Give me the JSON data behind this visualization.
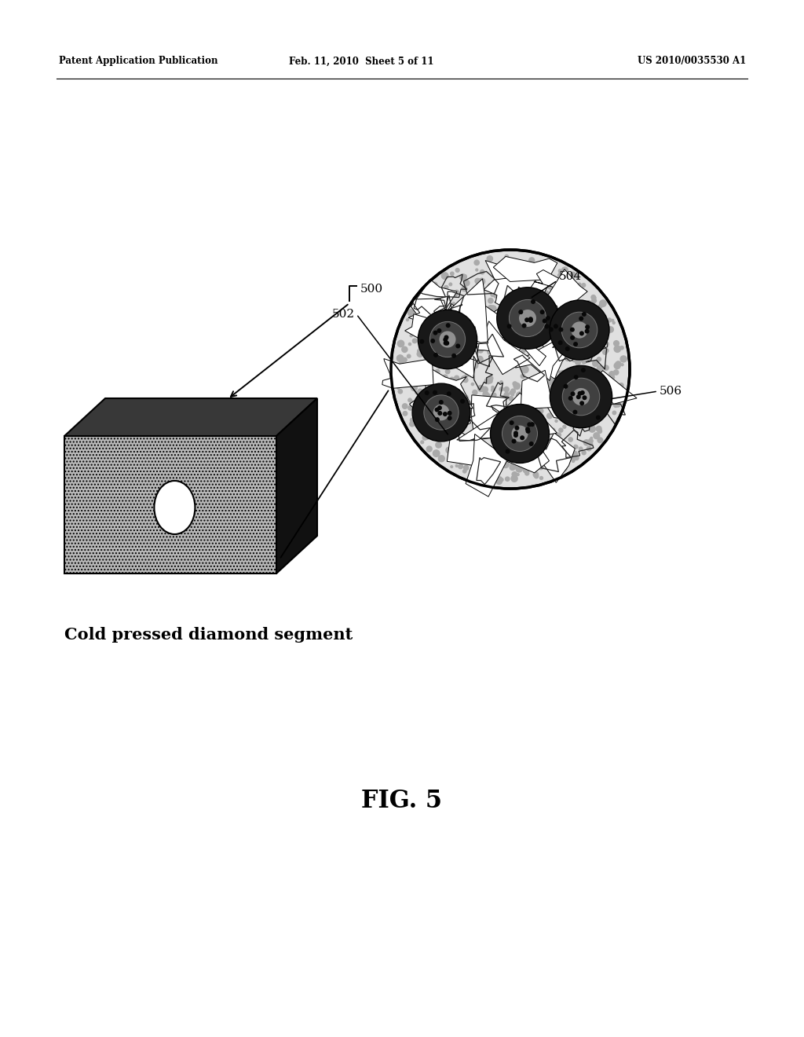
{
  "bg_color": "#ffffff",
  "header_left": "Patent Application Publication",
  "header_mid": "Feb. 11, 2010  Sheet 5 of 11",
  "header_right": "US 2010/0035530 A1",
  "fig_label": "FIG. 5",
  "caption": "Cold pressed diamond segment",
  "label_500": "500",
  "label_502": "502",
  "label_504": "504",
  "label_506": "506"
}
